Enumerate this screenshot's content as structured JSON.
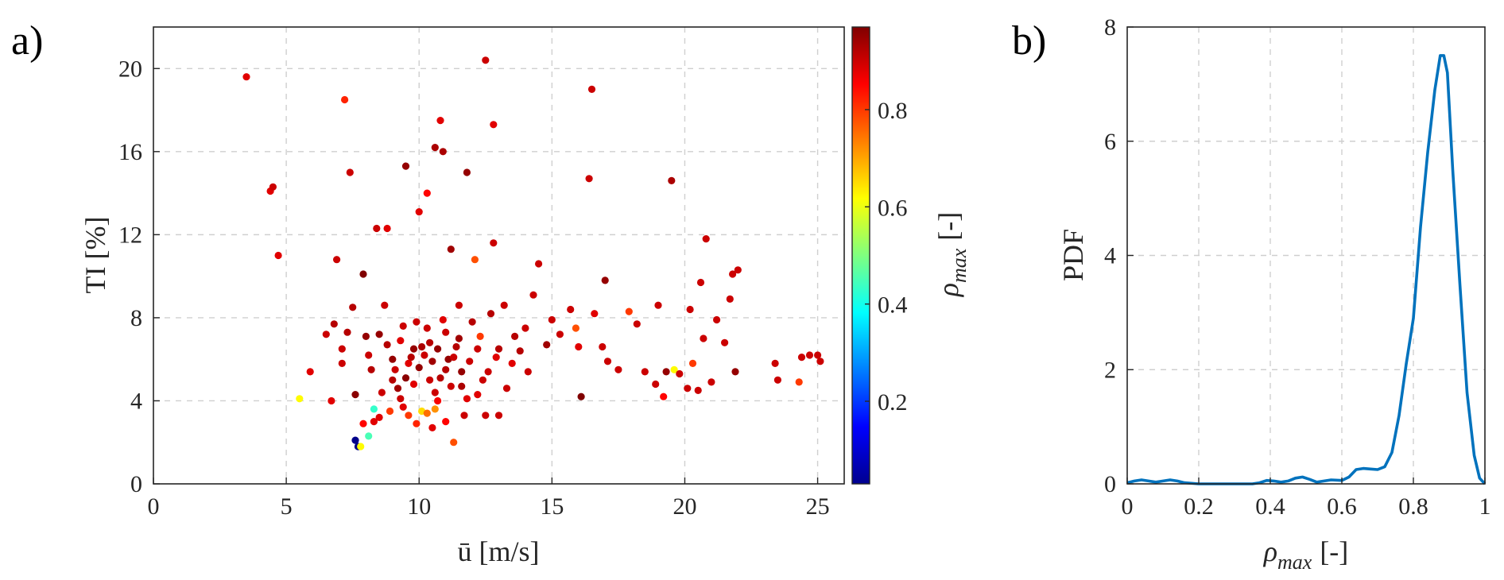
{
  "chart_data": [
    {
      "type": "scatter",
      "panel_label": "a)",
      "xlabel_text": "ū [m/s]",
      "ylabel_text": "TI [%]",
      "xlim": [
        0,
        26
      ],
      "ylim": [
        0,
        22
      ],
      "xticks": [
        "0",
        "5",
        "10",
        "15",
        "20",
        "25"
      ],
      "yticks": [
        "0",
        "4",
        "8",
        "12",
        "16",
        "20"
      ],
      "grid": true,
      "colorbar": {
        "label_main": "ρ",
        "label_sub": "max",
        "label_unit": "[-]",
        "colormap": "jet",
        "range": [
          0.03,
          0.97
        ],
        "ticks": [
          "0.2",
          "0.4",
          "0.6",
          "0.8"
        ]
      },
      "points": [
        [
          3.5,
          19.6,
          0.88
        ],
        [
          4.4,
          14.1,
          0.88
        ],
        [
          4.5,
          14.3,
          0.9
        ],
        [
          4.7,
          11.0,
          0.88
        ],
        [
          5.5,
          4.1,
          0.62
        ],
        [
          5.9,
          5.4,
          0.88
        ],
        [
          6.5,
          7.2,
          0.9
        ],
        [
          6.8,
          7.7,
          0.92
        ],
        [
          6.9,
          10.8,
          0.9
        ],
        [
          7.1,
          6.5,
          0.9
        ],
        [
          7.2,
          18.5,
          0.82
        ],
        [
          7.3,
          7.3,
          0.92
        ],
        [
          7.4,
          15.0,
          0.9
        ],
        [
          7.5,
          8.5,
          0.92
        ],
        [
          7.6,
          4.3,
          0.96
        ],
        [
          7.6,
          2.1,
          0.04
        ],
        [
          7.7,
          1.8,
          0.03
        ],
        [
          7.8,
          1.8,
          0.62
        ],
        [
          7.9,
          10.1,
          0.97
        ],
        [
          7.9,
          2.9,
          0.85
        ],
        [
          8.0,
          7.1,
          0.95
        ],
        [
          8.1,
          2.3,
          0.45
        ],
        [
          8.1,
          6.2,
          0.9
        ],
        [
          8.2,
          5.5,
          0.92
        ],
        [
          8.3,
          3.6,
          0.43
        ],
        [
          8.4,
          12.3,
          0.9
        ],
        [
          8.5,
          7.2,
          0.95
        ],
        [
          8.5,
          3.2,
          0.88
        ],
        [
          8.7,
          8.6,
          0.9
        ],
        [
          8.8,
          12.3,
          0.88
        ],
        [
          8.9,
          3.5,
          0.8
        ],
        [
          9.0,
          6.0,
          0.95
        ],
        [
          9.1,
          5.5,
          0.9
        ],
        [
          9.2,
          4.6,
          0.94
        ],
        [
          9.3,
          6.9,
          0.88
        ],
        [
          9.4,
          7.6,
          0.9
        ],
        [
          9.5,
          15.3,
          0.95
        ],
        [
          9.5,
          5.1,
          0.96
        ],
        [
          9.6,
          3.3,
          0.8
        ],
        [
          9.7,
          6.1,
          0.92
        ],
        [
          9.8,
          4.8,
          0.88
        ],
        [
          9.9,
          7.8,
          0.9
        ],
        [
          10.0,
          13.1,
          0.88
        ],
        [
          10.0,
          5.6,
          0.95
        ],
        [
          10.1,
          3.5,
          0.65
        ],
        [
          10.2,
          6.2,
          0.9
        ],
        [
          10.3,
          14.0,
          0.85
        ],
        [
          10.3,
          3.4,
          0.75
        ],
        [
          10.4,
          6.8,
          0.92
        ],
        [
          10.5,
          5.9,
          0.94
        ],
        [
          10.6,
          16.2,
          0.93
        ],
        [
          10.6,
          4.4,
          0.9
        ],
        [
          10.7,
          6.5,
          0.95
        ],
        [
          10.8,
          17.5,
          0.88
        ],
        [
          10.8,
          5.1,
          0.92
        ],
        [
          10.9,
          16.0,
          0.93
        ],
        [
          11.0,
          7.3,
          0.9
        ],
        [
          11.0,
          3.0,
          0.85
        ],
        [
          11.1,
          6.0,
          0.95
        ],
        [
          11.2,
          11.3,
          0.94
        ],
        [
          11.2,
          4.7,
          0.9
        ],
        [
          11.3,
          2.0,
          0.78
        ],
        [
          11.4,
          6.6,
          0.92
        ],
        [
          11.5,
          8.6,
          0.9
        ],
        [
          11.6,
          5.4,
          0.95
        ],
        [
          11.8,
          15.0,
          0.95
        ],
        [
          11.8,
          4.1,
          0.88
        ],
        [
          12.0,
          7.8,
          0.92
        ],
        [
          12.1,
          10.8,
          0.78
        ],
        [
          12.2,
          6.5,
          0.9
        ],
        [
          12.3,
          7.1,
          0.8
        ],
        [
          12.4,
          5.0,
          0.9
        ],
        [
          12.5,
          20.4,
          0.9
        ],
        [
          12.5,
          3.3,
          0.9
        ],
        [
          12.7,
          8.2,
          0.92
        ],
        [
          12.8,
          17.3,
          0.88
        ],
        [
          12.8,
          11.6,
          0.9
        ],
        [
          13.0,
          6.5,
          0.92
        ],
        [
          13.0,
          3.3,
          0.9
        ],
        [
          13.2,
          8.6,
          0.9
        ],
        [
          13.5,
          5.8,
          0.88
        ],
        [
          13.8,
          6.4,
          0.92
        ],
        [
          14.0,
          7.5,
          0.9
        ],
        [
          14.3,
          9.1,
          0.9
        ],
        [
          14.5,
          10.6,
          0.9
        ],
        [
          14.8,
          6.7,
          0.94
        ],
        [
          15.0,
          7.9,
          0.9
        ],
        [
          15.3,
          7.2,
          0.9
        ],
        [
          15.7,
          8.4,
          0.9
        ],
        [
          15.9,
          7.5,
          0.78
        ],
        [
          16.0,
          6.6,
          0.88
        ],
        [
          16.1,
          4.2,
          0.97
        ],
        [
          16.4,
          14.7,
          0.9
        ],
        [
          16.5,
          19.0,
          0.9
        ],
        [
          16.6,
          8.2,
          0.88
        ],
        [
          16.9,
          6.6,
          0.9
        ],
        [
          17.0,
          9.8,
          0.95
        ],
        [
          17.1,
          5.9,
          0.9
        ],
        [
          17.5,
          5.5,
          0.9
        ],
        [
          17.9,
          8.3,
          0.8
        ],
        [
          18.2,
          7.7,
          0.9
        ],
        [
          18.5,
          5.4,
          0.9
        ],
        [
          18.9,
          4.8,
          0.9
        ],
        [
          19.0,
          8.6,
          0.9
        ],
        [
          19.2,
          4.2,
          0.85
        ],
        [
          19.3,
          5.4,
          0.95
        ],
        [
          19.5,
          14.6,
          0.93
        ],
        [
          19.6,
          5.5,
          0.62
        ],
        [
          19.8,
          5.3,
          0.9
        ],
        [
          20.1,
          4.6,
          0.9
        ],
        [
          20.2,
          8.4,
          0.9
        ],
        [
          20.3,
          5.8,
          0.8
        ],
        [
          20.5,
          4.5,
          0.9
        ],
        [
          20.6,
          9.7,
          0.9
        ],
        [
          20.7,
          7.0,
          0.9
        ],
        [
          20.8,
          11.8,
          0.9
        ],
        [
          21.0,
          4.9,
          0.9
        ],
        [
          21.2,
          7.9,
          0.9
        ],
        [
          21.5,
          6.8,
          0.9
        ],
        [
          21.7,
          8.9,
          0.9
        ],
        [
          21.8,
          10.1,
          0.9
        ],
        [
          21.9,
          5.4,
          0.95
        ],
        [
          22.0,
          10.3,
          0.9
        ],
        [
          23.4,
          5.8,
          0.9
        ],
        [
          23.5,
          5.0,
          0.9
        ],
        [
          24.3,
          4.9,
          0.8
        ],
        [
          24.4,
          6.1,
          0.9
        ],
        [
          24.7,
          6.2,
          0.9
        ],
        [
          25.0,
          6.2,
          0.9
        ],
        [
          25.1,
          5.9,
          0.9
        ],
        [
          9.0,
          5.0,
          0.92
        ],
        [
          9.3,
          4.1,
          0.9
        ],
        [
          9.6,
          5.8,
          0.88
        ],
        [
          10.1,
          6.6,
          0.93
        ],
        [
          10.4,
          5.0,
          0.9
        ],
        [
          10.7,
          4.0,
          0.86
        ],
        [
          11.0,
          5.5,
          0.92
        ],
        [
          11.3,
          6.1,
          0.9
        ],
        [
          11.6,
          4.7,
          0.93
        ],
        [
          11.9,
          5.9,
          0.9
        ],
        [
          12.2,
          4.3,
          0.88
        ],
        [
          12.6,
          5.4,
          0.9
        ],
        [
          9.8,
          6.5,
          0.95
        ],
        [
          10.3,
          7.5,
          0.9
        ],
        [
          10.9,
          7.9,
          0.88
        ],
        [
          11.5,
          7.0,
          0.94
        ],
        [
          8.6,
          4.4,
          0.9
        ],
        [
          8.8,
          6.7,
          0.92
        ],
        [
          9.4,
          3.7,
          0.88
        ],
        [
          10.6,
          3.6,
          0.72
        ],
        [
          11.7,
          3.3,
          0.9
        ],
        [
          12.9,
          6.1,
          0.88
        ],
        [
          13.3,
          4.6,
          0.9
        ],
        [
          13.6,
          7.1,
          0.92
        ],
        [
          10.5,
          2.7,
          0.88
        ],
        [
          9.9,
          2.9,
          0.82
        ],
        [
          8.3,
          3.0,
          0.88
        ],
        [
          7.1,
          5.8,
          0.9
        ],
        [
          6.7,
          4.0,
          0.88
        ],
        [
          14.1,
          5.4,
          0.9
        ]
      ]
    },
    {
      "type": "line",
      "panel_label": "b)",
      "ylabel_text": "PDF",
      "xlabel_main": "ρ",
      "xlabel_sub": "max",
      "xlabel_unit": "[-]",
      "xlim": [
        0,
        1
      ],
      "ylim": [
        0,
        8
      ],
      "xticks": [
        "0",
        "0.2",
        "0.4",
        "0.6",
        "0.8",
        "1"
      ],
      "yticks": [
        "0",
        "2",
        "4",
        "6",
        "8"
      ],
      "grid": true,
      "color": "#0072BD",
      "x": [
        0,
        0.02,
        0.04,
        0.06,
        0.08,
        0.1,
        0.12,
        0.14,
        0.16,
        0.2,
        0.3,
        0.35,
        0.37,
        0.39,
        0.41,
        0.43,
        0.45,
        0.47,
        0.49,
        0.51,
        0.53,
        0.55,
        0.57,
        0.6,
        0.62,
        0.64,
        0.66,
        0.68,
        0.7,
        0.72,
        0.74,
        0.76,
        0.78,
        0.8,
        0.82,
        0.84,
        0.86,
        0.875,
        0.885,
        0.895,
        0.91,
        0.93,
        0.95,
        0.97,
        0.985,
        1.0
      ],
      "y": [
        0.02,
        0.05,
        0.07,
        0.05,
        0.03,
        0.05,
        0.07,
        0.05,
        0.02,
        0.0,
        0.0,
        0.0,
        0.02,
        0.06,
        0.05,
        0.03,
        0.05,
        0.1,
        0.12,
        0.08,
        0.03,
        0.05,
        0.07,
        0.06,
        0.12,
        0.25,
        0.27,
        0.26,
        0.25,
        0.3,
        0.55,
        1.2,
        2.1,
        2.9,
        4.5,
        5.8,
        6.9,
        7.5,
        7.5,
        7.2,
        5.5,
        3.5,
        1.6,
        0.5,
        0.1,
        0.0
      ]
    }
  ]
}
